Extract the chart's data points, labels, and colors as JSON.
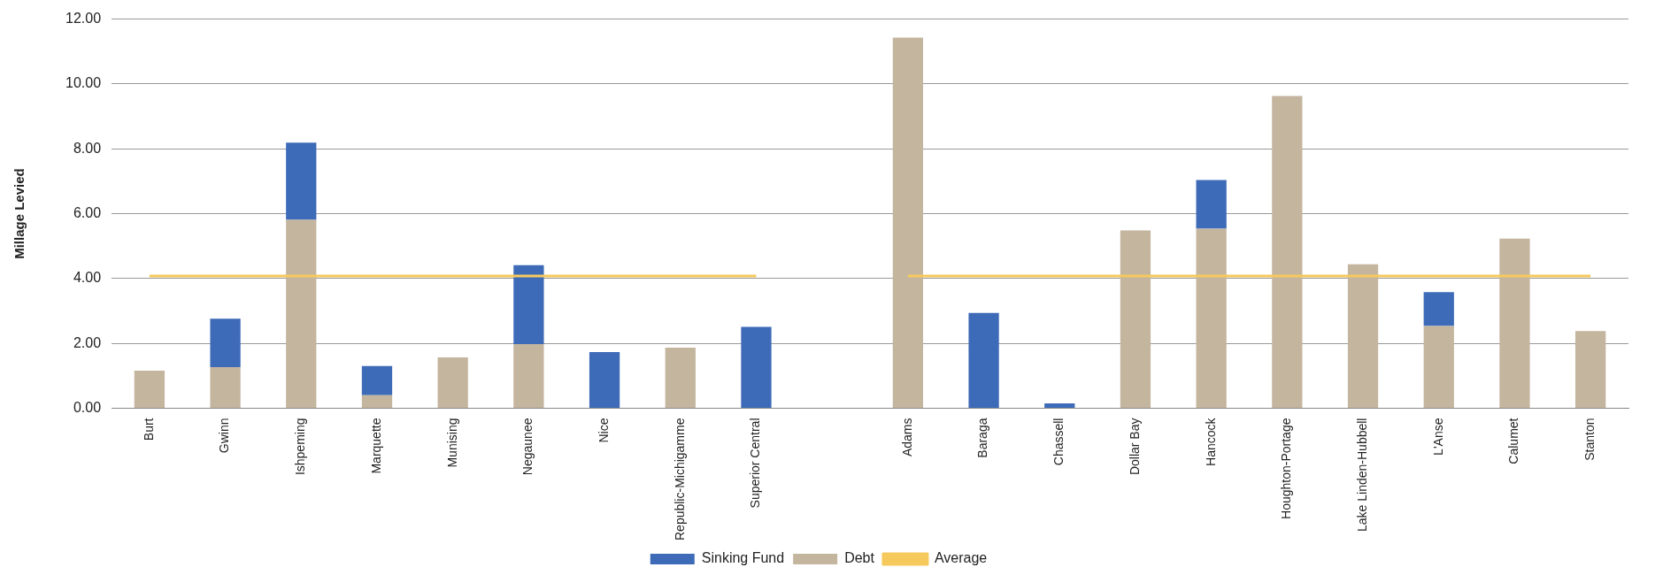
{
  "chart_data": {
    "type": "bar",
    "stacked": true,
    "ylabel": "Millage Levied",
    "categories": [
      "Burt",
      "Gwinn",
      "Ishpeming",
      "Marquette",
      "Munising",
      "Negaunee",
      "Nice",
      "Republic-Michigamme",
      "Superior Central",
      null,
      "Adams",
      "Baraga",
      "Chassell",
      "Dollar Bay",
      "Hancock",
      "Houghton-Portage",
      "Lake Linden-Hubbell",
      "L'Anse",
      "Calumet",
      "Stanton"
    ],
    "series": [
      {
        "name": "Debt",
        "color": "#c4b59f",
        "values": [
          1.16,
          1.27,
          5.81,
          0.4,
          1.57,
          1.98,
          null,
          1.87,
          null,
          null,
          11.43,
          null,
          null,
          5.48,
          5.54,
          9.63,
          4.44,
          2.54,
          5.23,
          2.38
        ]
      },
      {
        "name": "Sinking Fund",
        "color": "#3e6bb8",
        "values": [
          null,
          1.49,
          2.38,
          0.9,
          null,
          2.43,
          1.73,
          null,
          2.51,
          null,
          null,
          2.94,
          0.15,
          null,
          1.5,
          null,
          null,
          1.04,
          null,
          null
        ]
      },
      {
        "name": "Average",
        "type": "line",
        "color": "#f5c95c",
        "values": [
          4.08,
          4.08,
          4.08,
          4.08,
          4.08,
          4.08,
          4.08,
          4.08,
          4.08,
          null,
          4.08,
          4.08,
          4.08,
          4.08,
          4.08,
          4.08,
          4.08,
          4.08,
          4.08,
          4.08
        ]
      }
    ],
    "ylim": [
      0,
      12
    ],
    "yticks": [
      {
        "value": 0,
        "label": "0.00"
      },
      {
        "value": 2,
        "label": "2.00"
      },
      {
        "value": 4,
        "label": "4.00"
      },
      {
        "value": 6,
        "label": "6.00"
      },
      {
        "value": 8,
        "label": "8.00"
      },
      {
        "value": 10,
        "label": "10.00"
      },
      {
        "value": 12,
        "label": "12.00"
      }
    ],
    "grid": "y",
    "legend": "bottom",
    "marker": "none"
  }
}
